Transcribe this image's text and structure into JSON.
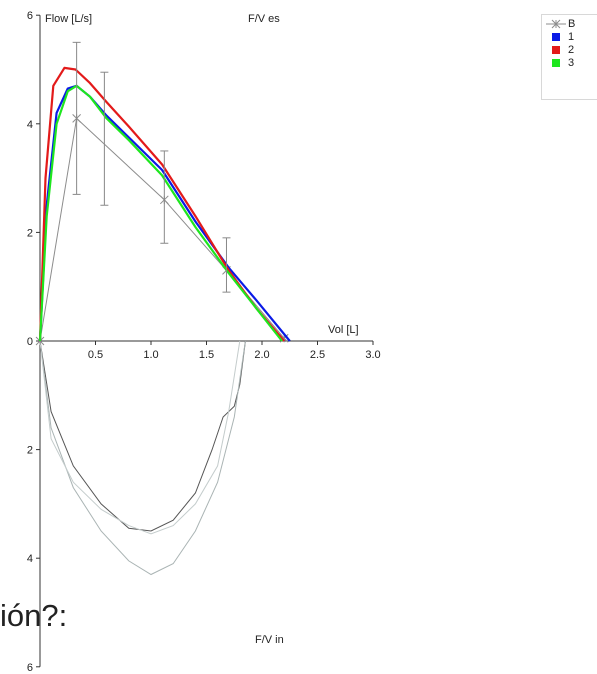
{
  "chart_data": {
    "type": "line",
    "title_top": "F/V es",
    "title_bottom": "F/V in",
    "ylabel": "Flow [L/s]",
    "xlabel": "Vol [L]",
    "xlim": [
      0,
      3.0
    ],
    "xticks": [
      "0.5",
      "1.0",
      "1.5",
      "2.0",
      "2.5",
      "3.0"
    ],
    "ylim": [
      -6,
      6
    ],
    "yticks_top": [
      "6",
      "4",
      "2",
      "0"
    ],
    "yticks_bottom": [
      "2",
      "4",
      "6"
    ],
    "legend_position": "top-right",
    "series": [
      {
        "name": "B",
        "color": "#8c8c8c",
        "x": [
          0,
          0.33,
          1.12,
          1.68,
          2.2
        ],
        "y": [
          0,
          4.1,
          2.6,
          1.3,
          0.05
        ]
      },
      {
        "name": "1",
        "color": "#0a1ae6",
        "x": [
          0,
          0.06,
          0.15,
          0.25,
          0.33,
          0.45,
          0.6,
          0.8,
          1.1,
          1.4,
          1.7,
          1.95,
          2.25
        ],
        "y": [
          0,
          2.5,
          4.2,
          4.65,
          4.7,
          4.5,
          4.15,
          3.75,
          3.15,
          2.2,
          1.35,
          0.75,
          0
        ]
      },
      {
        "name": "2",
        "color": "#e31a1a",
        "x": [
          0,
          0.05,
          0.12,
          0.22,
          0.32,
          0.45,
          0.6,
          0.8,
          1.1,
          1.4,
          1.7,
          1.95,
          2.2
        ],
        "y": [
          0,
          3.0,
          4.7,
          5.03,
          5.0,
          4.75,
          4.4,
          3.95,
          3.25,
          2.3,
          1.3,
          0.6,
          0
        ]
      },
      {
        "name": "3",
        "color": "#1ee61e",
        "x": [
          0,
          0.06,
          0.15,
          0.25,
          0.33,
          0.45,
          0.6,
          0.8,
          1.1,
          1.4,
          1.7,
          1.95,
          2.18
        ],
        "y": [
          0,
          2.3,
          4.0,
          4.6,
          4.7,
          4.5,
          4.1,
          3.7,
          3.05,
          2.1,
          1.25,
          0.6,
          0
        ]
      }
    ],
    "error_bars": [
      {
        "x": 0.33,
        "y": 4.1,
        "lo": 2.7,
        "hi": 5.5
      },
      {
        "x": 0.58,
        "y": 4.15,
        "lo": 2.5,
        "hi": 4.95
      },
      {
        "x": 1.12,
        "y": 3.1,
        "lo": 1.8,
        "hi": 3.5
      },
      {
        "x": 1.68,
        "y": 1.3,
        "lo": 0.9,
        "hi": 1.9
      }
    ],
    "inspiratory_curves": [
      {
        "color": "#555555",
        "x": [
          0,
          0.1,
          0.3,
          0.55,
          0.8,
          1.0,
          1.2,
          1.4,
          1.55,
          1.65,
          1.75,
          1.8,
          1.85
        ],
        "y": [
          0,
          -1.3,
          -2.3,
          -3.0,
          -3.45,
          -3.5,
          -3.3,
          -2.8,
          -2.0,
          -1.4,
          -1.2,
          -0.8,
          0
        ]
      },
      {
        "color": "#aab4b4",
        "x": [
          0,
          0.1,
          0.3,
          0.55,
          0.8,
          1.0,
          1.2,
          1.4,
          1.6,
          1.75,
          1.85
        ],
        "y": [
          0,
          -1.6,
          -2.7,
          -3.5,
          -4.05,
          -4.3,
          -4.1,
          -3.5,
          -2.6,
          -1.4,
          0
        ]
      },
      {
        "color": "#c4cccc",
        "x": [
          0,
          0.1,
          0.3,
          0.55,
          0.8,
          1.0,
          1.2,
          1.4,
          1.6,
          1.7,
          1.8
        ],
        "y": [
          0,
          -1.8,
          -2.6,
          -3.1,
          -3.4,
          -3.55,
          -3.4,
          -3.0,
          -2.3,
          -1.3,
          0
        ]
      }
    ]
  },
  "caption": "ión?:"
}
